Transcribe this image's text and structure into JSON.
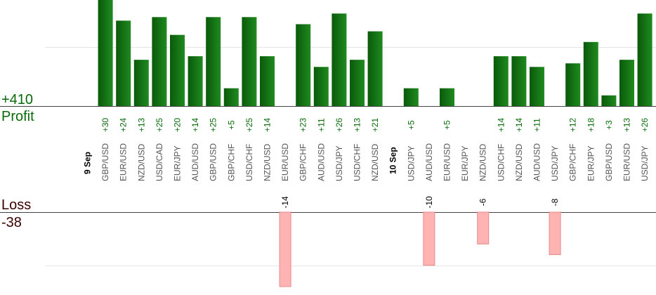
{
  "summary": {
    "profit_total": "+410",
    "profit_label": "Profit",
    "loss_label": "Loss",
    "loss_total": "-38"
  },
  "colors": {
    "profit_bar_dark": "#0a5a0a",
    "profit_bar_light": "#1f8a1f",
    "profit_text": "#0a6a0a",
    "loss_bar_fill": "#ffb3b3",
    "loss_bar_stroke": "#e88a8a",
    "loss_text": "#3a0000",
    "axis_line": "#444444",
    "grid_line": "#e6e6e6",
    "tick_text": "#555555",
    "date_text": "#000000"
  },
  "chart_data": {
    "type": "bar",
    "title": "",
    "profit_axis_visible_max": 30,
    "loss_axis_visible_max": 14,
    "items": [
      {
        "kind": "date",
        "label": "9 Sep"
      },
      {
        "kind": "trade",
        "pair": "GBP/USD",
        "value": 30,
        "label": "+30"
      },
      {
        "kind": "trade",
        "pair": "EUR/USD",
        "value": 24,
        "label": "+24"
      },
      {
        "kind": "trade",
        "pair": "NZD/USD",
        "value": 13,
        "label": "+13"
      },
      {
        "kind": "trade",
        "pair": "USD/CAD",
        "value": 25,
        "label": "+25"
      },
      {
        "kind": "trade",
        "pair": "EUR/JPY",
        "value": 20,
        "label": "+20"
      },
      {
        "kind": "trade",
        "pair": "AUD/USD",
        "value": 14,
        "label": "+14"
      },
      {
        "kind": "trade",
        "pair": "GBP/USD",
        "value": 25,
        "label": "+25"
      },
      {
        "kind": "trade",
        "pair": "GBP/CHF",
        "value": 5,
        "label": "+5"
      },
      {
        "kind": "trade",
        "pair": "USD/CHF",
        "value": 25,
        "label": "+25"
      },
      {
        "kind": "trade",
        "pair": "NZD/USD",
        "value": 14,
        "label": "+14"
      },
      {
        "kind": "trade",
        "pair": "EUR/USD",
        "value": -14,
        "label": "-14"
      },
      {
        "kind": "trade",
        "pair": "GBP/CHF",
        "value": 23,
        "label": "+23"
      },
      {
        "kind": "trade",
        "pair": "AUD/USD",
        "value": 11,
        "label": "+11"
      },
      {
        "kind": "trade",
        "pair": "USD/JPY",
        "value": 26,
        "label": "+26"
      },
      {
        "kind": "trade",
        "pair": "USD/CHF",
        "value": 13,
        "label": "+13"
      },
      {
        "kind": "trade",
        "pair": "NZD/USD",
        "value": 21,
        "label": "+21"
      },
      {
        "kind": "date",
        "label": "10 Sep"
      },
      {
        "kind": "trade",
        "pair": "USD/JPY",
        "value": 5,
        "label": "+5"
      },
      {
        "kind": "trade",
        "pair": "AUD/USD",
        "value": -10,
        "label": "-10"
      },
      {
        "kind": "trade",
        "pair": "EUR/USD",
        "value": 5,
        "label": "+5"
      },
      {
        "kind": "trade",
        "pair": "EUR/JPY",
        "value": 0,
        "label": ""
      },
      {
        "kind": "trade",
        "pair": "NZD/USD",
        "value": -6,
        "label": "-6"
      },
      {
        "kind": "trade",
        "pair": "USD/CHF",
        "value": 14,
        "label": "+14"
      },
      {
        "kind": "trade",
        "pair": "NZD/USD",
        "value": 14,
        "label": "+14"
      },
      {
        "kind": "trade",
        "pair": "AUD/USD",
        "value": 11,
        "label": "+11"
      },
      {
        "kind": "trade",
        "pair": "USD/JPY",
        "value": -8,
        "label": "-8"
      },
      {
        "kind": "trade",
        "pair": "GBP/CHF",
        "value": 12,
        "label": "+12"
      },
      {
        "kind": "trade",
        "pair": "EUR/JPY",
        "value": 18,
        "label": "+18"
      },
      {
        "kind": "trade",
        "pair": "GBP/USD",
        "value": 3,
        "label": "+3"
      },
      {
        "kind": "trade",
        "pair": "EUR/USD",
        "value": 13,
        "label": "+13"
      },
      {
        "kind": "trade",
        "pair": "USD/JPY",
        "value": 26,
        "label": "+26"
      }
    ]
  }
}
